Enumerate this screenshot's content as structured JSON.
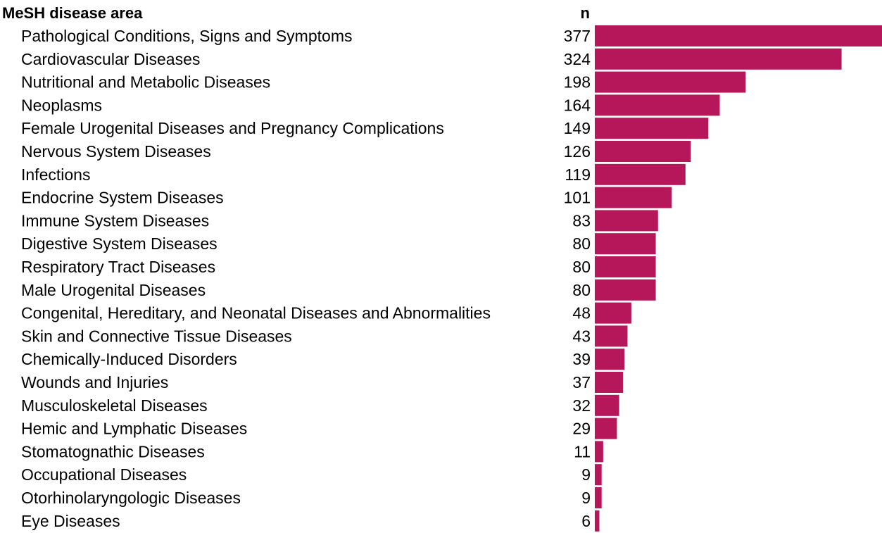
{
  "chart_data": {
    "type": "bar",
    "orientation": "horizontal",
    "category_header": "MeSH disease area",
    "value_header": "n",
    "bar_color": "#b5175a",
    "grid": false,
    "legend": "none",
    "categories": [
      "Pathological Conditions, Signs and Symptoms",
      "Cardiovascular Diseases",
      "Nutritional and Metabolic Diseases",
      "Neoplasms",
      "Female Urogenital Diseases and Pregnancy Complications",
      "Nervous System Diseases",
      "Infections",
      "Endocrine System Diseases",
      "Immune System Diseases",
      "Digestive System Diseases",
      "Respiratory Tract Diseases",
      "Male Urogenital Diseases",
      "Congenital, Hereditary, and Neonatal Diseases and Abnormalities",
      "Skin and Connective Tissue Diseases",
      "Chemically-Induced Disorders",
      "Wounds and Injuries",
      "Musculoskeletal Diseases",
      "Hemic and Lymphatic Diseases",
      "Stomatognathic Diseases",
      "Occupational Diseases",
      "Otorhinolaryngologic Diseases",
      "Eye Diseases"
    ],
    "values": [
      377,
      324,
      198,
      164,
      149,
      126,
      119,
      101,
      83,
      80,
      80,
      80,
      48,
      43,
      39,
      37,
      32,
      29,
      11,
      9,
      9,
      6
    ],
    "xlim": [
      0,
      377
    ]
  }
}
